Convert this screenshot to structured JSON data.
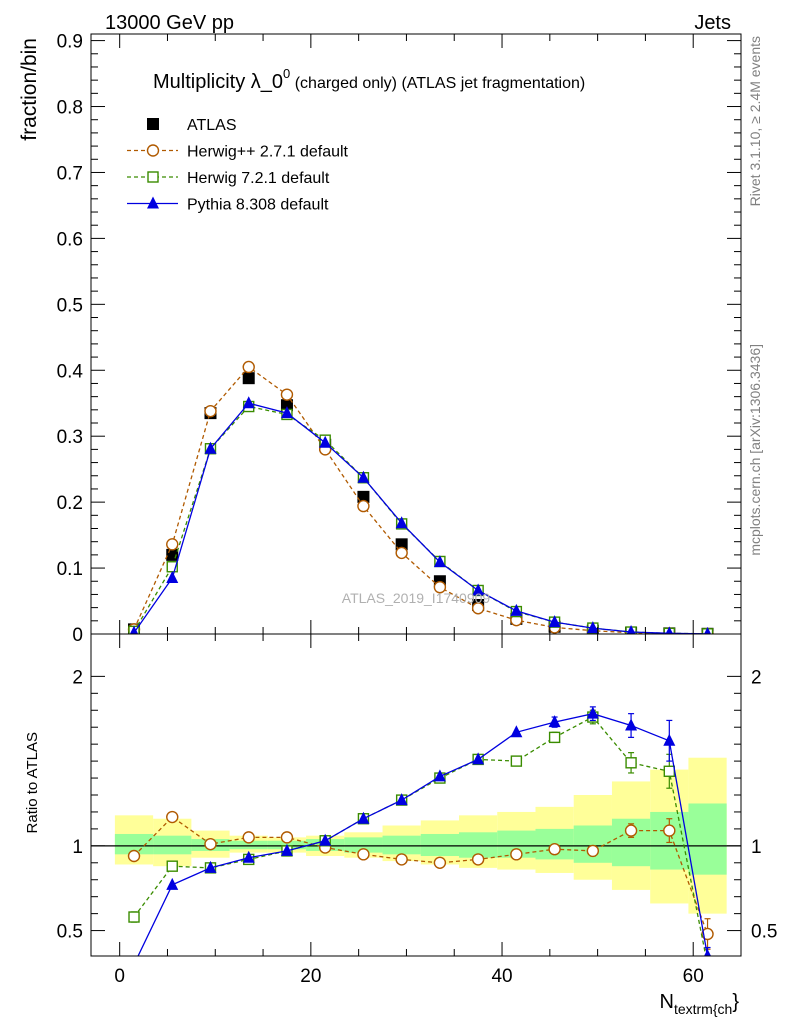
{
  "header": {
    "left": "13000 GeV pp",
    "right": "Jets"
  },
  "side_labels": {
    "rivet": "Rivet 3.1.10, ≥ 2.4M events",
    "mcplots": "mcplots.cern.ch [arXiv:1306.3436]"
  },
  "watermark": "ATLAS_2019_I1740909",
  "chart_data": [
    {
      "type": "scatter",
      "title_main": "Multiplicity λ_0",
      "title_sup": "0",
      "title_rest": " (charged only) (ATLAS jet fragmentation)",
      "ylabel": "fraction/bin",
      "xlim": [
        -3,
        65
      ],
      "ylim": [
        0,
        0.91
      ],
      "y_ticks": [
        0,
        0.1,
        0.2,
        0.3,
        0.4,
        0.5,
        0.6,
        0.7,
        0.8,
        0.9
      ],
      "y_tick_labels": [
        "0",
        "0.1",
        "0.2",
        "0.3",
        "0.4",
        "0.5",
        "0.6",
        "0.7",
        "0.8",
        "0.9"
      ],
      "legend_position": "top-left",
      "x": [
        1.5,
        5.5,
        9.5,
        13.5,
        17.5,
        21.5,
        25.5,
        29.5,
        33.5,
        37.5,
        41.5,
        45.5,
        49.5,
        53.5,
        57.5,
        61.5
      ],
      "series": [
        {
          "name": "ATLAS",
          "color": "#000000",
          "marker": "filled-square",
          "line": "none",
          "values": [
            0.007,
            0.12,
            0.335,
            0.388,
            0.347,
            0.287,
            0.208,
            0.136,
            0.08,
            0.044,
            0.023,
            0.011,
            0.005,
            0.002,
            0.001,
            0.0003
          ]
        },
        {
          "name": "Herwig++ 2.7.1 default",
          "color": "#b05a00",
          "marker": "open-circle",
          "line": "dashed",
          "values": [
            0.007,
            0.136,
            0.338,
            0.405,
            0.363,
            0.28,
            0.194,
            0.123,
            0.071,
            0.039,
            0.021,
            0.01,
            0.005,
            0.002,
            0.0008,
            0.0001
          ]
        },
        {
          "name": "Herwig 7.2.1 default",
          "color": "#3a8c00",
          "marker": "open-square",
          "line": "dashed",
          "values": [
            0.004,
            0.102,
            0.281,
            0.345,
            0.333,
            0.294,
            0.237,
            0.167,
            0.11,
            0.066,
            0.034,
            0.018,
            0.009,
            0.003,
            0.001,
            0.0003
          ]
        },
        {
          "name": "Pythia 8.308 default",
          "color": "#0000e0",
          "marker": "filled-triangle",
          "line": "solid",
          "values": [
            0.002,
            0.085,
            0.281,
            0.35,
            0.335,
            0.29,
            0.237,
            0.168,
            0.109,
            0.066,
            0.035,
            0.018,
            0.009,
            0.003,
            0.001,
            0.0001
          ]
        }
      ]
    },
    {
      "type": "scatter",
      "ylabel": "Ratio to ATLAS",
      "xlabel": "N",
      "xlabel_sub": "textrm{ch",
      "xlabel_tail": "}",
      "xlim": [
        -3,
        65
      ],
      "ylim": [
        0.35,
        2.25
      ],
      "x_ticks": [
        0,
        20,
        40,
        60
      ],
      "x_tick_labels": [
        "0",
        "20",
        "40",
        "60"
      ],
      "y_ticks": [
        0.5,
        1,
        2
      ],
      "y_tick_labels": [
        "0.5",
        "1",
        "2"
      ],
      "reference_line": 1,
      "bin_edges": [
        -0.5,
        3.5,
        7.5,
        11.5,
        15.5,
        19.5,
        23.5,
        27.5,
        31.5,
        35.5,
        39.5,
        43.5,
        47.5,
        51.5,
        55.5,
        59.5,
        63.5
      ],
      "band_inner": [
        [
          0.95,
          1.07
        ],
        [
          0.95,
          1.06
        ],
        [
          0.97,
          1.04
        ],
        [
          0.98,
          1.03
        ],
        [
          0.98,
          1.03
        ],
        [
          0.97,
          1.04
        ],
        [
          0.96,
          1.05
        ],
        [
          0.95,
          1.06
        ],
        [
          0.94,
          1.07
        ],
        [
          0.93,
          1.08
        ],
        [
          0.93,
          1.09
        ],
        [
          0.92,
          1.1
        ],
        [
          0.9,
          1.12
        ],
        [
          0.88,
          1.16
        ],
        [
          0.86,
          1.2
        ],
        [
          0.83,
          1.25
        ]
      ],
      "band_outer": [
        [
          0.89,
          1.18
        ],
        [
          0.88,
          1.16
        ],
        [
          0.93,
          1.09
        ],
        [
          0.96,
          1.06
        ],
        [
          0.96,
          1.05
        ],
        [
          0.94,
          1.06
        ],
        [
          0.93,
          1.08
        ],
        [
          0.91,
          1.12
        ],
        [
          0.89,
          1.15
        ],
        [
          0.87,
          1.18
        ],
        [
          0.86,
          1.2
        ],
        [
          0.84,
          1.23
        ],
        [
          0.8,
          1.3
        ],
        [
          0.74,
          1.38
        ],
        [
          0.66,
          1.45
        ],
        [
          0.6,
          1.52
        ]
      ],
      "x": [
        1.5,
        5.5,
        9.5,
        13.5,
        17.5,
        21.5,
        25.5,
        29.5,
        33.5,
        37.5,
        41.5,
        45.5,
        49.5,
        53.5,
        57.5,
        61.5
      ],
      "series": [
        {
          "name": "Herwig++ 2.7.1 default",
          "color": "#b05a00",
          "marker": "open-circle",
          "line": "dashed",
          "values": [
            0.94,
            1.17,
            1.01,
            1.05,
            1.05,
            0.99,
            0.95,
            0.92,
            0.9,
            0.92,
            0.95,
            0.98,
            0.97,
            1.09,
            1.09,
            0.48
          ],
          "errors": [
            0.02,
            0.0,
            0.0,
            0.0,
            0.0,
            0.0,
            0.0,
            0.0,
            0.0,
            0.0,
            0.0,
            0.02,
            0.03,
            0.04,
            0.07,
            0.09
          ]
        },
        {
          "name": "Herwig 7.2.1 default",
          "color": "#3a8c00",
          "marker": "open-square",
          "line": "dashed",
          "values": [
            0.58,
            0.88,
            0.87,
            0.92,
            0.97,
            1.03,
            1.16,
            1.27,
            1.4,
            1.51,
            1.5,
            1.64,
            1.76,
            1.49,
            1.44,
            0.3
          ],
          "errors": [
            0.03,
            0.0,
            0.0,
            0.0,
            0.0,
            0.0,
            0.0,
            0.0,
            0.0,
            0.0,
            0.0,
            0.03,
            0.04,
            0.06,
            0.1,
            0.05
          ]
        },
        {
          "name": "Pythia 8.308 default",
          "color": "#0000e0",
          "marker": "filled-triangle",
          "line": "solid",
          "values": [
            0.3,
            0.77,
            0.87,
            0.93,
            0.97,
            1.03,
            1.16,
            1.27,
            1.41,
            1.51,
            1.67,
            1.73,
            1.78,
            1.71,
            1.62,
            0.35
          ],
          "errors": [
            0.0,
            0.0,
            0.0,
            0.0,
            0.0,
            0.0,
            0.0,
            0.0,
            0.0,
            0.0,
            0.0,
            0.03,
            0.04,
            0.07,
            0.12,
            0.05
          ]
        }
      ]
    }
  ]
}
